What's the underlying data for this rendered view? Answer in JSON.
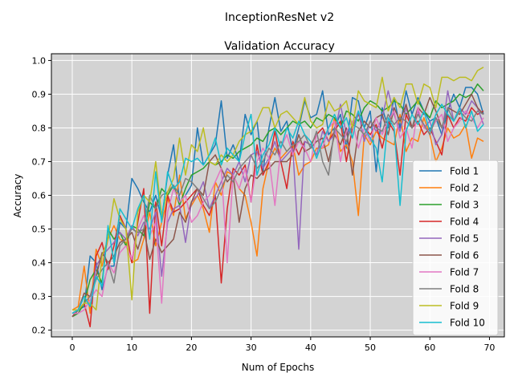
{
  "chart_data": {
    "type": "line",
    "suptitle": "InceptionResNet v2",
    "title": "Validation Accuracy",
    "xlabel": "Num of Epochs",
    "ylabel": "Accuracy",
    "xlim": [
      -3.5,
      72.5
    ],
    "ylim": [
      0.18,
      1.02
    ],
    "xticks": [
      0,
      10,
      20,
      30,
      40,
      50,
      60,
      70
    ],
    "yticks": [
      0.2,
      0.3,
      0.4,
      0.5,
      0.6,
      0.7,
      0.8,
      0.9,
      1.0
    ],
    "ytick_labels": [
      "0.2",
      "0.3",
      "0.4",
      "0.5",
      "0.6",
      "0.7",
      "0.8",
      "0.9",
      "1.0"
    ],
    "grid": true,
    "background": "#d3d3d3",
    "legend_position": "lower right",
    "x": [
      0,
      1,
      2,
      3,
      4,
      5,
      6,
      7,
      8,
      9,
      10,
      11,
      12,
      13,
      14,
      15,
      16,
      17,
      18,
      19,
      20,
      21,
      22,
      23,
      24,
      25,
      26,
      27,
      28,
      29,
      30,
      31,
      32,
      33,
      34,
      35,
      36,
      37,
      38,
      39,
      40,
      41,
      42,
      43,
      44,
      45,
      46,
      47,
      48,
      49,
      50,
      51,
      52,
      53,
      54,
      55,
      56,
      57,
      58,
      59,
      60,
      61,
      62,
      63,
      64,
      65,
      66,
      67,
      68,
      69
    ],
    "series": [
      {
        "name": "Fold 1",
        "color": "#1f77b4",
        "values": [
          0.25,
          0.26,
          0.27,
          0.42,
          0.4,
          0.32,
          0.39,
          0.39,
          0.52,
          0.5,
          0.65,
          0.62,
          0.58,
          0.55,
          0.6,
          0.53,
          0.66,
          0.75,
          0.58,
          0.6,
          0.63,
          0.8,
          0.69,
          0.72,
          0.75,
          0.88,
          0.71,
          0.75,
          0.7,
          0.84,
          0.78,
          0.82,
          0.67,
          0.8,
          0.89,
          0.79,
          0.82,
          0.73,
          0.8,
          0.88,
          0.83,
          0.84,
          0.91,
          0.78,
          0.8,
          0.84,
          0.74,
          0.89,
          0.88,
          0.8,
          0.85,
          0.67,
          0.86,
          0.8,
          0.89,
          0.8,
          0.91,
          0.84,
          0.89,
          0.85,
          0.82,
          0.83,
          0.78,
          0.85,
          0.9,
          0.86,
          0.92,
          0.92,
          0.9,
          0.84
        ]
      },
      {
        "name": "Fold 2",
        "color": "#ff7f0e",
        "values": [
          0.26,
          0.27,
          0.39,
          0.25,
          0.44,
          0.39,
          0.47,
          0.51,
          0.47,
          0.46,
          0.4,
          0.41,
          0.47,
          0.55,
          0.45,
          0.52,
          0.59,
          0.54,
          0.66,
          0.53,
          0.57,
          0.6,
          0.56,
          0.49,
          0.64,
          0.6,
          0.67,
          0.66,
          0.62,
          0.6,
          0.52,
          0.42,
          0.62,
          0.7,
          0.74,
          0.71,
          0.73,
          0.75,
          0.66,
          0.69,
          0.7,
          0.74,
          0.74,
          0.75,
          0.83,
          0.73,
          0.75,
          0.7,
          0.54,
          0.78,
          0.75,
          0.79,
          0.77,
          0.76,
          0.75,
          0.84,
          0.73,
          0.77,
          0.76,
          0.83,
          0.78,
          0.7,
          0.74,
          0.8,
          0.77,
          0.78,
          0.81,
          0.71,
          0.77,
          0.76
        ]
      },
      {
        "name": "Fold 3",
        "color": "#2ca02c",
        "values": [
          0.24,
          0.25,
          0.28,
          0.35,
          0.38,
          0.34,
          0.5,
          0.47,
          0.49,
          0.45,
          0.51,
          0.5,
          0.48,
          0.58,
          0.56,
          0.62,
          0.6,
          0.63,
          0.57,
          0.62,
          0.66,
          0.67,
          0.68,
          0.7,
          0.69,
          0.7,
          0.72,
          0.71,
          0.73,
          0.74,
          0.75,
          0.77,
          0.76,
          0.79,
          0.8,
          0.78,
          0.8,
          0.82,
          0.81,
          0.82,
          0.8,
          0.83,
          0.82,
          0.84,
          0.83,
          0.8,
          0.85,
          0.84,
          0.82,
          0.86,
          0.88,
          0.87,
          0.85,
          0.86,
          0.88,
          0.87,
          0.84,
          0.86,
          0.88,
          0.85,
          0.83,
          0.88,
          0.86,
          0.87,
          0.88,
          0.9,
          0.89,
          0.9,
          0.93,
          0.91
        ]
      },
      {
        "name": "Fold 4",
        "color": "#d62728",
        "values": [
          0.24,
          0.26,
          0.28,
          0.21,
          0.42,
          0.46,
          0.38,
          0.45,
          0.54,
          0.5,
          0.4,
          0.52,
          0.62,
          0.25,
          0.58,
          0.45,
          0.6,
          0.55,
          0.56,
          0.58,
          0.6,
          0.62,
          0.57,
          0.54,
          0.6,
          0.34,
          0.56,
          0.68,
          0.66,
          0.69,
          0.58,
          0.75,
          0.66,
          0.7,
          0.79,
          0.7,
          0.62,
          0.76,
          0.72,
          0.76,
          0.75,
          0.78,
          0.8,
          0.76,
          0.79,
          0.82,
          0.7,
          0.8,
          0.84,
          0.8,
          0.78,
          0.81,
          0.74,
          0.82,
          0.79,
          0.66,
          0.84,
          0.8,
          0.82,
          0.78,
          0.8,
          0.76,
          0.72,
          0.84,
          0.8,
          0.83,
          0.82,
          0.86,
          0.84,
          0.85
        ]
      },
      {
        "name": "Fold 5",
        "color": "#9467bd",
        "values": [
          0.24,
          0.26,
          0.3,
          0.27,
          0.39,
          0.42,
          0.44,
          0.46,
          0.49,
          0.47,
          0.51,
          0.48,
          0.52,
          0.5,
          0.55,
          0.36,
          0.52,
          0.56,
          0.57,
          0.46,
          0.58,
          0.6,
          0.64,
          0.56,
          0.6,
          0.64,
          0.68,
          0.66,
          0.7,
          0.64,
          0.72,
          0.73,
          0.68,
          0.71,
          0.76,
          0.7,
          0.72,
          0.74,
          0.44,
          0.76,
          0.75,
          0.72,
          0.79,
          0.76,
          0.78,
          0.87,
          0.78,
          0.8,
          0.85,
          0.76,
          0.82,
          0.79,
          0.83,
          0.91,
          0.84,
          0.79,
          0.86,
          0.8,
          0.85,
          0.8,
          0.82,
          0.75,
          0.78,
          0.91,
          0.82,
          0.86,
          0.84,
          0.88,
          0.86,
          0.81
        ]
      },
      {
        "name": "Fold 6",
        "color": "#8c564b",
        "values": [
          0.24,
          0.26,
          0.31,
          0.3,
          0.36,
          0.43,
          0.4,
          0.42,
          0.46,
          0.47,
          0.49,
          0.44,
          0.5,
          0.41,
          0.47,
          0.43,
          0.45,
          0.47,
          0.55,
          0.52,
          0.58,
          0.62,
          0.6,
          0.7,
          0.72,
          0.68,
          0.64,
          0.66,
          0.52,
          0.62,
          0.66,
          0.65,
          0.67,
          0.68,
          0.7,
          0.7,
          0.7,
          0.72,
          0.78,
          0.73,
          0.74,
          0.76,
          0.77,
          0.7,
          0.78,
          0.75,
          0.8,
          0.66,
          0.79,
          0.82,
          0.8,
          0.83,
          0.84,
          0.78,
          0.86,
          0.82,
          0.87,
          0.8,
          0.86,
          0.84,
          0.89,
          0.85,
          0.8,
          0.86,
          0.85,
          0.84,
          0.87,
          0.9,
          0.86,
          0.84
        ]
      },
      {
        "name": "Fold 7",
        "color": "#e377c2",
        "values": [
          0.25,
          0.25,
          0.26,
          0.29,
          0.32,
          0.3,
          0.4,
          0.37,
          0.43,
          0.45,
          0.41,
          0.5,
          0.54,
          0.48,
          0.52,
          0.28,
          0.55,
          0.62,
          0.58,
          0.6,
          0.52,
          0.54,
          0.58,
          0.6,
          0.64,
          0.68,
          0.4,
          0.66,
          0.62,
          0.68,
          0.58,
          0.7,
          0.74,
          0.71,
          0.57,
          0.74,
          0.78,
          0.72,
          0.76,
          0.74,
          0.7,
          0.78,
          0.74,
          0.8,
          0.82,
          0.7,
          0.79,
          0.82,
          0.74,
          0.8,
          0.76,
          0.83,
          0.78,
          0.82,
          0.85,
          0.77,
          0.8,
          0.74,
          0.86,
          0.8,
          0.79,
          0.82,
          0.84,
          0.76,
          0.8,
          0.82,
          0.85,
          0.83,
          0.8,
          0.83
        ]
      },
      {
        "name": "Fold 8",
        "color": "#7f7f7f",
        "values": [
          0.25,
          0.26,
          0.28,
          0.3,
          0.35,
          0.38,
          0.4,
          0.34,
          0.45,
          0.47,
          0.5,
          0.49,
          0.5,
          0.6,
          0.56,
          0.6,
          0.61,
          0.63,
          0.6,
          0.65,
          0.64,
          0.62,
          0.59,
          0.56,
          0.58,
          0.62,
          0.66,
          0.64,
          0.68,
          0.7,
          0.72,
          0.68,
          0.7,
          0.74,
          0.72,
          0.76,
          0.73,
          0.75,
          0.76,
          0.78,
          0.74,
          0.79,
          0.7,
          0.66,
          0.8,
          0.78,
          0.76,
          0.81,
          0.8,
          0.78,
          0.82,
          0.8,
          0.79,
          0.84,
          0.81,
          0.83,
          0.82,
          0.8,
          0.84,
          0.81,
          0.78,
          0.83,
          0.8,
          0.86,
          0.82,
          0.85,
          0.83,
          0.82,
          0.85,
          0.84
        ]
      },
      {
        "name": "Fold 9",
        "color": "#bcbd22",
        "values": [
          0.26,
          0.26,
          0.28,
          0.28,
          0.26,
          0.42,
          0.47,
          0.59,
          0.53,
          0.5,
          0.29,
          0.55,
          0.6,
          0.58,
          0.7,
          0.54,
          0.61,
          0.65,
          0.77,
          0.66,
          0.75,
          0.73,
          0.8,
          0.7,
          0.69,
          0.72,
          0.7,
          0.72,
          0.76,
          0.78,
          0.79,
          0.82,
          0.86,
          0.86,
          0.8,
          0.84,
          0.85,
          0.83,
          0.81,
          0.89,
          0.82,
          0.8,
          0.81,
          0.88,
          0.85,
          0.86,
          0.88,
          0.8,
          0.91,
          0.88,
          0.87,
          0.86,
          0.95,
          0.85,
          0.89,
          0.86,
          0.93,
          0.93,
          0.87,
          0.93,
          0.92,
          0.86,
          0.95,
          0.95,
          0.94,
          0.95,
          0.95,
          0.94,
          0.97,
          0.98
        ]
      },
      {
        "name": "Fold 10",
        "color": "#17becf",
        "values": [
          0.25,
          0.26,
          0.3,
          0.27,
          0.36,
          0.33,
          0.51,
          0.4,
          0.56,
          0.53,
          0.5,
          0.56,
          0.6,
          0.47,
          0.67,
          0.52,
          0.67,
          0.62,
          0.64,
          0.71,
          0.7,
          0.71,
          0.69,
          0.72,
          0.77,
          0.69,
          0.74,
          0.72,
          0.7,
          0.78,
          0.84,
          0.66,
          0.72,
          0.75,
          0.8,
          0.74,
          0.8,
          0.77,
          0.82,
          0.78,
          0.76,
          0.71,
          0.76,
          0.8,
          0.84,
          0.8,
          0.83,
          0.77,
          0.85,
          0.8,
          0.77,
          0.74,
          0.64,
          0.83,
          0.8,
          0.57,
          0.79,
          0.84,
          0.81,
          0.85,
          0.79,
          0.84,
          0.87,
          0.84,
          0.82,
          0.86,
          0.8,
          0.85,
          0.79,
          0.81
        ]
      }
    ]
  }
}
